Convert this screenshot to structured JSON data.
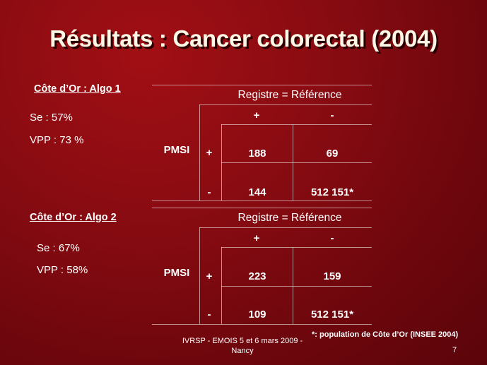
{
  "slide": {
    "title": "Résultats : Cancer colorectal (2004)",
    "sections": [
      {
        "label": "Côte d’Or : Algo 1",
        "se": "Se : 57%",
        "vpp": "VPP : 73 %",
        "table": {
          "header": "Registre = Référence",
          "col_plus": "+",
          "col_minus": "-",
          "row_label": "PMSI",
          "row_plus": "+",
          "row_minus": "-",
          "pp": "188",
          "pm": "69",
          "mp": "144",
          "mm": "512 151*"
        }
      },
      {
        "label": "Côte d’Or : Algo 2",
        "se": "Se : 67%",
        "vpp": "VPP : 58%",
        "table": {
          "header": "Registre = Référence",
          "col_plus": "+",
          "col_minus": "-",
          "row_label": "PMSI",
          "row_plus": "+",
          "row_minus": "-",
          "pp": "223",
          "pm": "159",
          "mp": "109",
          "mm": "512 151*"
        }
      }
    ],
    "footer": "IVRSP - EMOIS 5 et 6 mars 2009 - Nancy",
    "footnote": "*: population de Côte d’Or (INSEE 2004)",
    "page_number": "7"
  }
}
